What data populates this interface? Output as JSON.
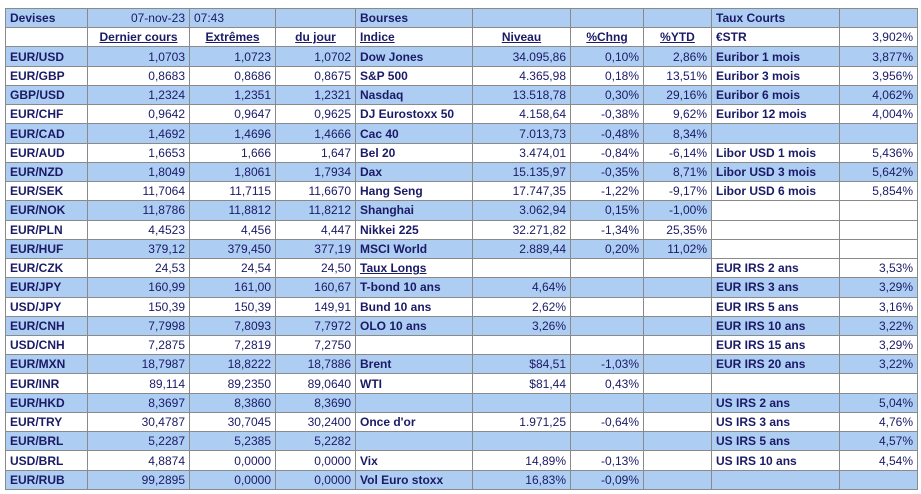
{
  "header": {
    "devises": "Devises",
    "date": "07-nov-23",
    "time": "07:43",
    "bourses": "Bourses",
    "taux_courts": "Taux Courts"
  },
  "colheads": {
    "dernier": "Dernier cours",
    "extremes": "Extrêmes",
    "du_jour": "du jour",
    "indice": "Indice",
    "niveau": "Niveau",
    "chng": "%Chng",
    "ytd": "%YTD",
    "estr_label": "€STR",
    "estr_value": "3,902%"
  },
  "rows": [
    [
      "EUR/USD",
      "1,0703",
      "1,0723",
      "1,0702",
      "Dow Jones",
      "34.095,86",
      "0,10%",
      "2,86%",
      "Euribor 1 mois",
      "3,877%"
    ],
    [
      "EUR/GBP",
      "0,8683",
      "0,8686",
      "0,8675",
      "S&P 500",
      "4.365,98",
      "0,18%",
      "13,51%",
      "Euribor 3 mois",
      "3,956%"
    ],
    [
      "GBP/USD",
      "1,2324",
      "1,2351",
      "1,2321",
      "Nasdaq",
      "13.518,78",
      "0,30%",
      "29,16%",
      "Euribor 6 mois",
      "4,062%"
    ],
    [
      "EUR/CHF",
      "0,9642",
      "0,9647",
      "0,9625",
      "DJ Eurostoxx 50",
      "4.158,64",
      "-0,38%",
      "9,62%",
      "Euribor 12 mois",
      "4,004%"
    ],
    [
      "EUR/CAD",
      "1,4692",
      "1,4696",
      "1,4666",
      "Cac 40",
      "7.013,73",
      "-0,48%",
      "8,34%",
      "",
      ""
    ],
    [
      "EUR/AUD",
      "1,6653",
      "1,666",
      "1,647",
      "Bel 20",
      "3.474,01",
      "-0,84%",
      "-6,14%",
      "Libor USD 1 mois",
      "5,436%"
    ],
    [
      "EUR/NZD",
      "1,8049",
      "1,8061",
      "1,7934",
      "Dax",
      "15.135,97",
      "-0,35%",
      "8,71%",
      "Libor USD 3 mois",
      "5,642%"
    ],
    [
      "EUR/SEK",
      "11,7064",
      "11,7115",
      "11,6670",
      "Hang Seng",
      "17.747,35",
      "-1,22%",
      "-9,17%",
      "Libor USD 6 mois",
      "5,854%"
    ],
    [
      "EUR/NOK",
      "11,8786",
      "11,8812",
      "11,8212",
      "Shanghai",
      "3.062,94",
      "0,15%",
      "-1,00%",
      "",
      ""
    ],
    [
      "EUR/PLN",
      "4,4523",
      "4,456",
      "4,447",
      "Nikkei 225",
      "32.271,82",
      "-1,34%",
      "25,35%",
      "",
      ""
    ],
    [
      "EUR/HUF",
      "379,12",
      "379,450",
      "377,19",
      "MSCI World",
      "2.889,44",
      "0,20%",
      "11,02%",
      "",
      ""
    ],
    [
      "EUR/CZK",
      "24,53",
      "24,54",
      "24,50",
      "Taux Longs",
      "",
      "",
      "",
      "EUR IRS 2 ans",
      "3,53%"
    ],
    [
      "EUR/JPY",
      "160,99",
      "161,00",
      "160,67",
      "T-bond 10 ans",
      "4,64%",
      "",
      "",
      "EUR IRS 3 ans",
      "3,29%"
    ],
    [
      "USD/JPY",
      "150,39",
      "150,39",
      "149,91",
      "Bund 10 ans",
      "2,62%",
      "",
      "",
      "EUR IRS 5 ans",
      "3,16%"
    ],
    [
      "EUR/CNH",
      "7,7998",
      "7,8093",
      "7,7972",
      "OLO 10 ans",
      "3,26%",
      "",
      "",
      "EUR IRS 10 ans",
      "3,22%"
    ],
    [
      "USD/CNH",
      "7,2875",
      "7,2819",
      "7,2750",
      "",
      "",
      "",
      "",
      "EUR IRS 15 ans",
      "3,29%"
    ],
    [
      "EUR/MXN",
      "18,7987",
      "18,8222",
      "18,7886",
      "Brent",
      "$84,51",
      "-1,03%",
      "",
      "EUR IRS 20 ans",
      "3,22%"
    ],
    [
      "EUR/INR",
      "89,114",
      "89,2350",
      "89,0640",
      "WTI",
      "$81,44",
      "0,43%",
      "",
      "",
      ""
    ],
    [
      "EUR/HKD",
      "8,3697",
      "8,3860",
      "8,3690",
      "",
      "",
      "",
      "",
      "US IRS 2 ans",
      "5,04%"
    ],
    [
      "EUR/TRY",
      "30,4787",
      "30,7045",
      "30,2400",
      "Once d'or",
      "1.971,25",
      "-0,64%",
      "",
      "US IRS 3 ans",
      "4,76%"
    ],
    [
      "EUR/BRL",
      "5,2287",
      "5,2385",
      "5,2282",
      "",
      "",
      "",
      "",
      "US IRS 5 ans",
      "4,57%"
    ],
    [
      "USD/BRL",
      "4,8874",
      "0,0000",
      "0,0000",
      "Vix",
      "14,89%",
      "-0,13%",
      "",
      "US IRS 10 ans",
      "4,54%"
    ],
    [
      "EUR/RUB",
      "99,2895",
      "0,0000",
      "0,0000",
      "Vol Euro stoxx",
      "16,83%",
      "-0,09%",
      "",
      ""
    ]
  ]
}
